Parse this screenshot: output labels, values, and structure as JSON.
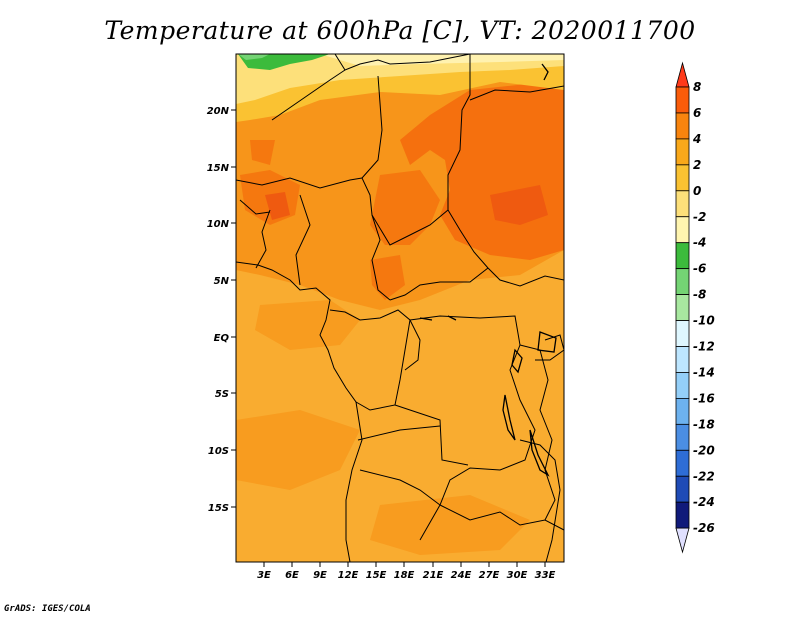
{
  "title": "Temperature at 600hPa [C], VT: 2020011700",
  "credit": "GrADS: IGES/COLA",
  "map": {
    "lat_labels": [
      "20N",
      "15N",
      "10N",
      "5N",
      "EQ",
      "5S",
      "10S",
      "15S"
    ],
    "lon_labels": [
      "3E",
      "6E",
      "9E",
      "12E",
      "15E",
      "18E",
      "21E",
      "24E",
      "27E",
      "30E",
      "33E"
    ]
  },
  "colorbar": {
    "labels": [
      "8",
      "6",
      "4",
      "2",
      "0",
      "-2",
      "-4",
      "-6",
      "-8",
      "-10",
      "-12",
      "-14",
      "-16",
      "-18",
      "-20",
      "-22",
      "-24",
      "-26"
    ],
    "colors": [
      "#ff3a1a",
      "#fa5c0a",
      "#f8840e",
      "#f9a81a",
      "#fac232",
      "#fde07a",
      "#fff5b0",
      "#3cbb3c",
      "#74d474",
      "#a8e8a0",
      "#dff7ff",
      "#bde6ff",
      "#94cff8",
      "#6db2ef",
      "#4b8ee3",
      "#2e6dd6",
      "#1f4bb6",
      "#101a7a",
      "#e0e0ff"
    ]
  }
}
